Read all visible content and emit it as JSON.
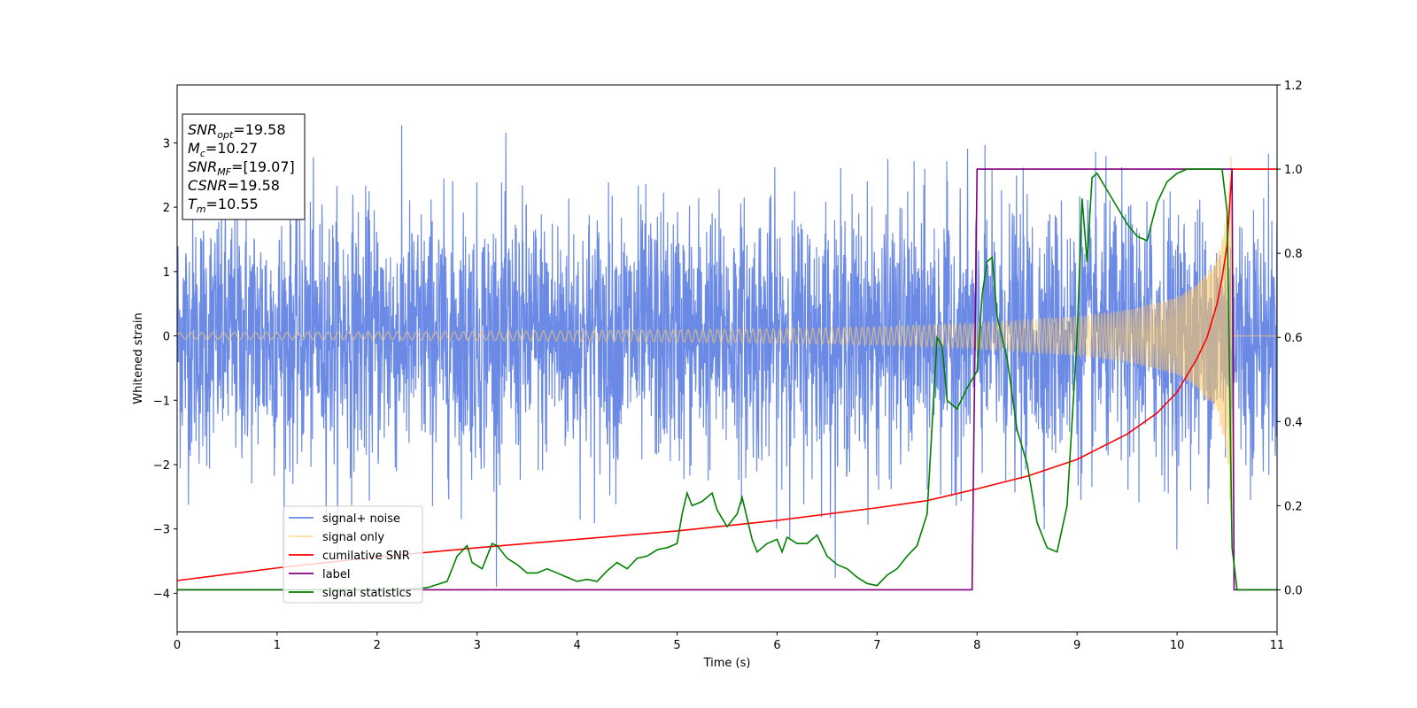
{
  "chart_data": {
    "type": "line",
    "xlabel": "Time (s)",
    "ylabel": "Whitened strain",
    "xlim": [
      0,
      11
    ],
    "ylim_left": [
      -4.6,
      3.9
    ],
    "ylim_right": [
      -0.1,
      1.2
    ],
    "x_ticks": [
      0,
      1,
      2,
      3,
      4,
      5,
      6,
      7,
      8,
      9,
      10,
      11
    ],
    "y_ticks_left": [
      -4,
      -3,
      -2,
      -1,
      0,
      1,
      2,
      3
    ],
    "y_ticks_right": [
      0.0,
      0.2,
      0.4,
      0.6,
      0.8,
      1.0,
      1.2
    ],
    "grid": false,
    "legend_position": "lower-left",
    "info_box": [
      {
        "base": "SNR",
        "sub": "opt",
        "value": "=19.58"
      },
      {
        "base": "M",
        "sub": "c",
        "value": "=10.27"
      },
      {
        "base": "SNR",
        "sub": "MF",
        "value": "=[19.07]"
      },
      {
        "base": "CSNR",
        "sub": "",
        "value": "=19.58"
      },
      {
        "base": "T",
        "sub": "m",
        "value": "=10.55"
      }
    ],
    "series": [
      {
        "name": "signal+ noise",
        "color": "#6b8ae6",
        "axis": "left",
        "description_values": {
          "noise_sigma": 1.0,
          "extremes": [
            -3.9,
            3.5
          ]
        }
      },
      {
        "name": "signal only",
        "color": "#ffc966",
        "axis": "left",
        "envelope": {
          "x": [
            0,
            2,
            4,
            6,
            7,
            8,
            9,
            9.5,
            10,
            10.2,
            10.4,
            10.5,
            10.55
          ],
          "amp": [
            0.05,
            0.06,
            0.08,
            0.11,
            0.14,
            0.2,
            0.3,
            0.4,
            0.6,
            0.8,
            1.2,
            1.9,
            3.1
          ]
        },
        "end_x": 10.55
      },
      {
        "name": "cumilative SNR",
        "color": "#ff0000",
        "axis": "right",
        "x": [
          0,
          1,
          2,
          3,
          4,
          5,
          6,
          7,
          7.5,
          8,
          8.5,
          9,
          9.5,
          9.8,
          10,
          10.2,
          10.3,
          10.4,
          10.45,
          10.5,
          10.55,
          11
        ],
        "y": [
          0.022,
          0.052,
          0.078,
          0.1,
          0.12,
          0.14,
          0.165,
          0.195,
          0.212,
          0.24,
          0.27,
          0.31,
          0.37,
          0.42,
          0.47,
          0.55,
          0.6,
          0.68,
          0.74,
          0.82,
          1.0,
          1.0
        ]
      },
      {
        "name": "label",
        "color": "#800080",
        "axis": "right",
        "x": [
          0,
          7.95,
          8.0,
          10.55,
          10.57,
          11
        ],
        "y": [
          0,
          0,
          1,
          1,
          0,
          0
        ]
      },
      {
        "name": "signal statistics",
        "color": "#008000",
        "axis": "right",
        "x": [
          0,
          0.5,
          1,
          1.5,
          2,
          2.3,
          2.5,
          2.7,
          2.8,
          2.9,
          2.95,
          3.05,
          3.15,
          3.2,
          3.3,
          3.4,
          3.5,
          3.6,
          3.7,
          3.8,
          3.9,
          4.0,
          4.1,
          4.2,
          4.3,
          4.4,
          4.5,
          4.6,
          4.7,
          4.8,
          4.85,
          4.9,
          5.0,
          5.05,
          5.1,
          5.15,
          5.25,
          5.35,
          5.4,
          5.5,
          5.6,
          5.65,
          5.75,
          5.8,
          5.9,
          6.0,
          6.05,
          6.1,
          6.2,
          6.3,
          6.4,
          6.5,
          6.6,
          6.7,
          6.8,
          6.9,
          7.0,
          7.1,
          7.2,
          7.3,
          7.4,
          7.5,
          7.6,
          7.65,
          7.7,
          7.8,
          7.9,
          8.0,
          8.05,
          8.1,
          8.15,
          8.2,
          8.3,
          8.4,
          8.5,
          8.6,
          8.7,
          8.8,
          8.9,
          9.0,
          9.05,
          9.1,
          9.15,
          9.2,
          9.3,
          9.4,
          9.5,
          9.6,
          9.7,
          9.8,
          9.9,
          10.0,
          10.1,
          10.2,
          10.3,
          10.4,
          10.45,
          10.5,
          10.55,
          10.6,
          10.7,
          11
        ],
        "y": [
          0,
          0.0,
          0.0,
          0.0,
          0.0,
          0.002,
          0.005,
          0.02,
          0.08,
          0.105,
          0.065,
          0.05,
          0.11,
          0.105,
          0.075,
          0.06,
          0.04,
          0.04,
          0.05,
          0.04,
          0.03,
          0.02,
          0.025,
          0.02,
          0.045,
          0.065,
          0.05,
          0.075,
          0.08,
          0.095,
          0.098,
          0.1,
          0.11,
          0.18,
          0.23,
          0.2,
          0.21,
          0.23,
          0.19,
          0.15,
          0.18,
          0.22,
          0.12,
          0.09,
          0.11,
          0.12,
          0.09,
          0.125,
          0.11,
          0.11,
          0.13,
          0.08,
          0.06,
          0.05,
          0.03,
          0.015,
          0.01,
          0.035,
          0.05,
          0.08,
          0.105,
          0.18,
          0.6,
          0.58,
          0.45,
          0.43,
          0.48,
          0.52,
          0.7,
          0.78,
          0.79,
          0.65,
          0.55,
          0.38,
          0.3,
          0.16,
          0.1,
          0.09,
          0.2,
          0.6,
          0.93,
          0.78,
          0.98,
          0.99,
          0.95,
          0.91,
          0.87,
          0.84,
          0.83,
          0.92,
          0.97,
          0.99,
          1.0,
          1.0,
          1.0,
          1.0,
          1.0,
          0.9,
          0.1,
          0.0,
          0.0,
          0.0
        ]
      }
    ]
  }
}
